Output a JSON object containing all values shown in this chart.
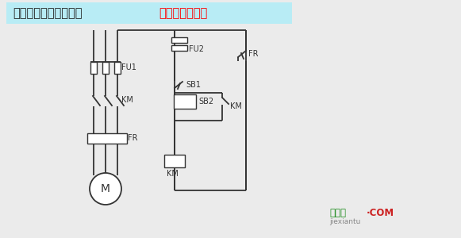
{
  "title_black": "启动电动机和自锁环节",
  "title_red": "画出电气互联图",
  "title_box_color": "#b8ecf5",
  "bg_color": "#ebebeb",
  "line_color": "#333333",
  "watermark_green": "接线图",
  "watermark_red": "·COM",
  "watermark_sub": "jiexiantu"
}
